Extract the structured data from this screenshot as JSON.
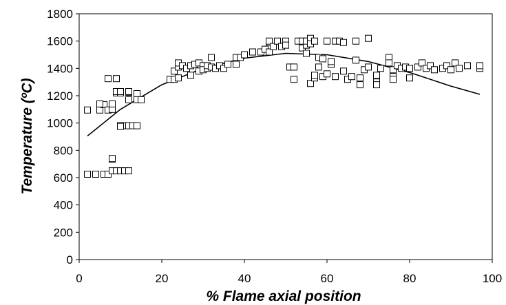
{
  "chart_data": {
    "type": "scatter",
    "xlabel": "% Flame axial position",
    "ylabel": "Temperature (ºC)",
    "xlim": [
      0,
      100
    ],
    "ylim": [
      0,
      1800
    ],
    "x_ticks": [
      0,
      20,
      40,
      60,
      80,
      100
    ],
    "y_ticks": [
      0,
      200,
      400,
      600,
      800,
      1000,
      1200,
      1400,
      1600,
      1800
    ],
    "grid": false,
    "legend": "none",
    "marker": "open-square",
    "colors": {
      "marker_edge": "#000000",
      "marker_fill": "#ffffff",
      "trendline": "#000000"
    },
    "trendline": {
      "type": "quadratic",
      "x": [
        2,
        10,
        20,
        30,
        40,
        50,
        60,
        70,
        80,
        90,
        97
      ],
      "y": [
        905,
        1100,
        1280,
        1400,
        1475,
        1510,
        1500,
        1450,
        1370,
        1270,
        1210
      ]
    },
    "series": [
      {
        "points": [
          [
            2,
            1095
          ],
          [
            2,
            625
          ],
          [
            4,
            625
          ],
          [
            6,
            625
          ],
          [
            7,
            625
          ],
          [
            8,
            650
          ],
          [
            9,
            650
          ],
          [
            10,
            650
          ],
          [
            11,
            650
          ],
          [
            12,
            650
          ],
          [
            8,
            735
          ],
          [
            8,
            740
          ],
          [
            5,
            1095
          ],
          [
            6,
            1135
          ],
          [
            5,
            1140
          ],
          [
            7,
            1095
          ],
          [
            8,
            1100
          ],
          [
            8,
            1140
          ],
          [
            9,
            1220
          ],
          [
            9,
            1230
          ],
          [
            10,
            1220
          ],
          [
            10,
            1230
          ],
          [
            12,
            1225
          ],
          [
            12,
            1230
          ],
          [
            14,
            1215
          ],
          [
            7,
            1325
          ],
          [
            9,
            1325
          ],
          [
            12,
            1170
          ],
          [
            14,
            1170
          ],
          [
            15,
            1170
          ],
          [
            10,
            980
          ],
          [
            11,
            980
          ],
          [
            12,
            980
          ],
          [
            13,
            980
          ],
          [
            14,
            980
          ],
          [
            10,
            975
          ],
          [
            22,
            1320
          ],
          [
            23,
            1320
          ],
          [
            24,
            1330
          ],
          [
            23,
            1380
          ],
          [
            24,
            1410
          ],
          [
            24,
            1440
          ],
          [
            25,
            1420
          ],
          [
            26,
            1400
          ],
          [
            27,
            1350
          ],
          [
            27,
            1420
          ],
          [
            28,
            1430
          ],
          [
            29,
            1440
          ],
          [
            29,
            1380
          ],
          [
            30,
            1420
          ],
          [
            30,
            1390
          ],
          [
            31,
            1400
          ],
          [
            31,
            1420
          ],
          [
            32,
            1480
          ],
          [
            32,
            1410
          ],
          [
            33,
            1400
          ],
          [
            34,
            1420
          ],
          [
            35,
            1400
          ],
          [
            36,
            1430
          ],
          [
            38,
            1430
          ],
          [
            38,
            1480
          ],
          [
            39,
            1480
          ],
          [
            40,
            1500
          ],
          [
            42,
            1520
          ],
          [
            44,
            1520
          ],
          [
            45,
            1540
          ],
          [
            46,
            1590
          ],
          [
            46,
            1600
          ],
          [
            46,
            1520
          ],
          [
            47,
            1560
          ],
          [
            48,
            1600
          ],
          [
            49,
            1560
          ],
          [
            50,
            1600
          ],
          [
            50,
            1570
          ],
          [
            51,
            1410
          ],
          [
            52,
            1410
          ],
          [
            52,
            1320
          ],
          [
            53,
            1600
          ],
          [
            54,
            1550
          ],
          [
            54,
            1600
          ],
          [
            55,
            1510
          ],
          [
            55,
            1570
          ],
          [
            55,
            1600
          ],
          [
            56,
            1600
          ],
          [
            56,
            1620
          ],
          [
            56,
            1580
          ],
          [
            57,
            1600
          ],
          [
            56,
            1290
          ],
          [
            57,
            1330
          ],
          [
            57,
            1350
          ],
          [
            58,
            1480
          ],
          [
            58,
            1410
          ],
          [
            59,
            1470
          ],
          [
            59,
            1340
          ],
          [
            60,
            1360
          ],
          [
            60,
            1600
          ],
          [
            61,
            1430
          ],
          [
            61,
            1450
          ],
          [
            62,
            1600
          ],
          [
            62,
            1340
          ],
          [
            63,
            1600
          ],
          [
            64,
            1590
          ],
          [
            64,
            1380
          ],
          [
            65,
            1320
          ],
          [
            66,
            1340
          ],
          [
            67,
            1600
          ],
          [
            67,
            1460
          ],
          [
            68,
            1330
          ],
          [
            68,
            1280
          ],
          [
            69,
            1390
          ],
          [
            70,
            1620
          ],
          [
            70,
            1410
          ],
          [
            72,
            1300
          ],
          [
            72,
            1280
          ],
          [
            72,
            1350
          ],
          [
            73,
            1400
          ],
          [
            75,
            1480
          ],
          [
            75,
            1440
          ],
          [
            76,
            1390
          ],
          [
            76,
            1340
          ],
          [
            76,
            1320
          ],
          [
            77,
            1420
          ],
          [
            78,
            1400
          ],
          [
            79,
            1410
          ],
          [
            80,
            1330
          ],
          [
            80,
            1400
          ],
          [
            82,
            1410
          ],
          [
            83,
            1440
          ],
          [
            84,
            1400
          ],
          [
            85,
            1420
          ],
          [
            86,
            1390
          ],
          [
            88,
            1400
          ],
          [
            89,
            1420
          ],
          [
            90,
            1390
          ],
          [
            91,
            1440
          ],
          [
            92,
            1400
          ],
          [
            94,
            1420
          ],
          [
            97,
            1400
          ],
          [
            97,
            1420
          ]
        ]
      }
    ]
  }
}
